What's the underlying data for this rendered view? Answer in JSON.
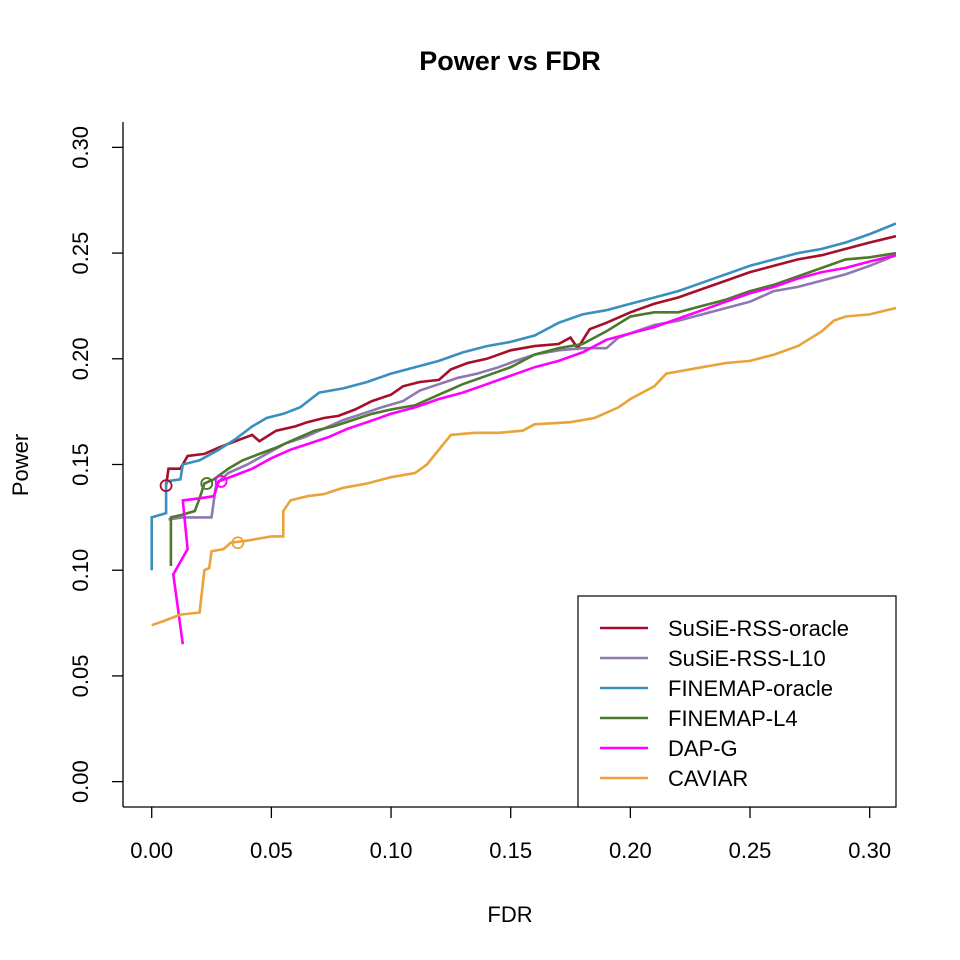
{
  "chart_data": {
    "type": "line",
    "title": "Power vs FDR",
    "xlabel": "FDR",
    "ylabel": "Power",
    "xlim": [
      -0.012,
      0.311
    ],
    "ylim": [
      -0.012,
      0.312
    ],
    "xticks": [
      0.0,
      0.05,
      0.1,
      0.15,
      0.2,
      0.25,
      0.3
    ],
    "xtick_labels": [
      "0.00",
      "0.05",
      "0.10",
      "0.15",
      "0.20",
      "0.25",
      "0.30"
    ],
    "yticks": [
      0.0,
      0.05,
      0.1,
      0.15,
      0.2,
      0.25,
      0.3
    ],
    "ytick_labels": [
      "0.00",
      "0.05",
      "0.10",
      "0.15",
      "0.20",
      "0.25",
      "0.30"
    ],
    "grid": false,
    "legend_position": "bottom-right",
    "series": [
      {
        "name": "SuSiE-RSS-oracle",
        "color": "#a50f2a",
        "points": [
          [
            0.006,
            0.14
          ],
          [
            0.007,
            0.148
          ],
          [
            0.012,
            0.148
          ],
          [
            0.015,
            0.154
          ],
          [
            0.022,
            0.155
          ],
          [
            0.028,
            0.158
          ],
          [
            0.035,
            0.161
          ],
          [
            0.042,
            0.164
          ],
          [
            0.045,
            0.161
          ],
          [
            0.052,
            0.166
          ],
          [
            0.06,
            0.168
          ],
          [
            0.065,
            0.17
          ],
          [
            0.072,
            0.172
          ],
          [
            0.078,
            0.173
          ],
          [
            0.085,
            0.176
          ],
          [
            0.092,
            0.18
          ],
          [
            0.1,
            0.183
          ],
          [
            0.105,
            0.187
          ],
          [
            0.112,
            0.189
          ],
          [
            0.12,
            0.19
          ],
          [
            0.125,
            0.195
          ],
          [
            0.132,
            0.198
          ],
          [
            0.14,
            0.2
          ],
          [
            0.15,
            0.204
          ],
          [
            0.16,
            0.206
          ],
          [
            0.17,
            0.207
          ],
          [
            0.175,
            0.21
          ],
          [
            0.178,
            0.205
          ],
          [
            0.183,
            0.214
          ],
          [
            0.19,
            0.217
          ],
          [
            0.2,
            0.222
          ],
          [
            0.21,
            0.226
          ],
          [
            0.22,
            0.229
          ],
          [
            0.23,
            0.233
          ],
          [
            0.24,
            0.237
          ],
          [
            0.25,
            0.241
          ],
          [
            0.26,
            0.244
          ],
          [
            0.27,
            0.247
          ],
          [
            0.28,
            0.249
          ],
          [
            0.29,
            0.252
          ],
          [
            0.3,
            0.255
          ],
          [
            0.311,
            0.258
          ]
        ],
        "marker": [
          0.006,
          0.14
        ]
      },
      {
        "name": "SuSiE-RSS-L10",
        "color": "#8e78b0",
        "points": [
          [
            0.007,
            0.124
          ],
          [
            0.013,
            0.125
          ],
          [
            0.025,
            0.125
          ],
          [
            0.027,
            0.141
          ],
          [
            0.032,
            0.146
          ],
          [
            0.04,
            0.15
          ],
          [
            0.048,
            0.155
          ],
          [
            0.056,
            0.16
          ],
          [
            0.064,
            0.163
          ],
          [
            0.072,
            0.167
          ],
          [
            0.08,
            0.171
          ],
          [
            0.088,
            0.174
          ],
          [
            0.096,
            0.177
          ],
          [
            0.105,
            0.18
          ],
          [
            0.112,
            0.185
          ],
          [
            0.12,
            0.188
          ],
          [
            0.128,
            0.191
          ],
          [
            0.136,
            0.193
          ],
          [
            0.145,
            0.196
          ],
          [
            0.152,
            0.199
          ],
          [
            0.16,
            0.202
          ],
          [
            0.17,
            0.204
          ],
          [
            0.18,
            0.205
          ],
          [
            0.19,
            0.205
          ],
          [
            0.195,
            0.21
          ],
          [
            0.2,
            0.212
          ],
          [
            0.21,
            0.216
          ],
          [
            0.22,
            0.218
          ],
          [
            0.23,
            0.221
          ],
          [
            0.24,
            0.224
          ],
          [
            0.25,
            0.227
          ],
          [
            0.26,
            0.232
          ],
          [
            0.27,
            0.234
          ],
          [
            0.28,
            0.237
          ],
          [
            0.29,
            0.24
          ],
          [
            0.3,
            0.244
          ],
          [
            0.311,
            0.249
          ]
        ],
        "marker": [
          0.023,
          0.141
        ]
      },
      {
        "name": "FINEMAP-oracle",
        "color": "#3a8fc1",
        "points": [
          [
            0.0,
            0.1
          ],
          [
            0.0,
            0.125
          ],
          [
            0.006,
            0.127
          ],
          [
            0.006,
            0.142
          ],
          [
            0.012,
            0.143
          ],
          [
            0.013,
            0.15
          ],
          [
            0.02,
            0.152
          ],
          [
            0.028,
            0.157
          ],
          [
            0.035,
            0.162
          ],
          [
            0.042,
            0.168
          ],
          [
            0.048,
            0.172
          ],
          [
            0.055,
            0.174
          ],
          [
            0.062,
            0.177
          ],
          [
            0.07,
            0.184
          ],
          [
            0.08,
            0.186
          ],
          [
            0.09,
            0.189
          ],
          [
            0.1,
            0.193
          ],
          [
            0.11,
            0.196
          ],
          [
            0.12,
            0.199
          ],
          [
            0.13,
            0.203
          ],
          [
            0.14,
            0.206
          ],
          [
            0.15,
            0.208
          ],
          [
            0.16,
            0.211
          ],
          [
            0.17,
            0.217
          ],
          [
            0.18,
            0.221
          ],
          [
            0.19,
            0.223
          ],
          [
            0.2,
            0.226
          ],
          [
            0.21,
            0.229
          ],
          [
            0.22,
            0.232
          ],
          [
            0.23,
            0.236
          ],
          [
            0.24,
            0.24
          ],
          [
            0.25,
            0.244
          ],
          [
            0.26,
            0.247
          ],
          [
            0.27,
            0.25
          ],
          [
            0.28,
            0.252
          ],
          [
            0.29,
            0.255
          ],
          [
            0.3,
            0.259
          ],
          [
            0.311,
            0.264
          ]
        ]
      },
      {
        "name": "FINEMAP-L4",
        "color": "#4a7a2a",
        "points": [
          [
            0.008,
            0.102
          ],
          [
            0.008,
            0.125
          ],
          [
            0.012,
            0.126
          ],
          [
            0.018,
            0.128
          ],
          [
            0.02,
            0.134
          ],
          [
            0.022,
            0.141
          ],
          [
            0.026,
            0.143
          ],
          [
            0.032,
            0.148
          ],
          [
            0.038,
            0.152
          ],
          [
            0.045,
            0.155
          ],
          [
            0.052,
            0.158
          ],
          [
            0.06,
            0.162
          ],
          [
            0.068,
            0.166
          ],
          [
            0.076,
            0.168
          ],
          [
            0.084,
            0.171
          ],
          [
            0.092,
            0.174
          ],
          [
            0.1,
            0.176
          ],
          [
            0.11,
            0.178
          ],
          [
            0.12,
            0.183
          ],
          [
            0.13,
            0.188
          ],
          [
            0.14,
            0.192
          ],
          [
            0.15,
            0.196
          ],
          [
            0.16,
            0.202
          ],
          [
            0.17,
            0.205
          ],
          [
            0.18,
            0.207
          ],
          [
            0.19,
            0.213
          ],
          [
            0.2,
            0.22
          ],
          [
            0.21,
            0.222
          ],
          [
            0.22,
            0.222
          ],
          [
            0.23,
            0.225
          ],
          [
            0.24,
            0.228
          ],
          [
            0.25,
            0.232
          ],
          [
            0.26,
            0.235
          ],
          [
            0.27,
            0.239
          ],
          [
            0.28,
            0.243
          ],
          [
            0.29,
            0.247
          ],
          [
            0.3,
            0.248
          ],
          [
            0.311,
            0.25
          ]
        ],
        "marker": [
          0.023,
          0.141
        ]
      },
      {
        "name": "DAP-G",
        "color": "#ff00ff",
        "points": [
          [
            0.013,
            0.065
          ],
          [
            0.009,
            0.098
          ],
          [
            0.015,
            0.11
          ],
          [
            0.013,
            0.133
          ],
          [
            0.02,
            0.134
          ],
          [
            0.026,
            0.135
          ],
          [
            0.028,
            0.142
          ],
          [
            0.035,
            0.145
          ],
          [
            0.042,
            0.148
          ],
          [
            0.05,
            0.153
          ],
          [
            0.058,
            0.157
          ],
          [
            0.066,
            0.16
          ],
          [
            0.074,
            0.163
          ],
          [
            0.082,
            0.167
          ],
          [
            0.09,
            0.17
          ],
          [
            0.1,
            0.174
          ],
          [
            0.11,
            0.177
          ],
          [
            0.12,
            0.181
          ],
          [
            0.13,
            0.184
          ],
          [
            0.14,
            0.188
          ],
          [
            0.15,
            0.192
          ],
          [
            0.16,
            0.196
          ],
          [
            0.17,
            0.199
          ],
          [
            0.18,
            0.203
          ],
          [
            0.19,
            0.209
          ],
          [
            0.2,
            0.212
          ],
          [
            0.21,
            0.215
          ],
          [
            0.22,
            0.219
          ],
          [
            0.23,
            0.223
          ],
          [
            0.24,
            0.227
          ],
          [
            0.25,
            0.231
          ],
          [
            0.26,
            0.234
          ],
          [
            0.27,
            0.238
          ],
          [
            0.28,
            0.241
          ],
          [
            0.29,
            0.243
          ],
          [
            0.3,
            0.246
          ],
          [
            0.311,
            0.249
          ]
        ],
        "marker": [
          0.029,
          0.142
        ]
      },
      {
        "name": "CAVIAR",
        "color": "#e8a33a",
        "points": [
          [
            0.0,
            0.074
          ],
          [
            0.005,
            0.076
          ],
          [
            0.012,
            0.079
          ],
          [
            0.02,
            0.08
          ],
          [
            0.022,
            0.1
          ],
          [
            0.024,
            0.101
          ],
          [
            0.025,
            0.109
          ],
          [
            0.03,
            0.11
          ],
          [
            0.033,
            0.113
          ],
          [
            0.04,
            0.114
          ],
          [
            0.045,
            0.115
          ],
          [
            0.05,
            0.116
          ],
          [
            0.055,
            0.116
          ],
          [
            0.055,
            0.128
          ],
          [
            0.058,
            0.133
          ],
          [
            0.065,
            0.135
          ],
          [
            0.072,
            0.136
          ],
          [
            0.08,
            0.139
          ],
          [
            0.09,
            0.141
          ],
          [
            0.1,
            0.144
          ],
          [
            0.11,
            0.146
          ],
          [
            0.115,
            0.15
          ],
          [
            0.12,
            0.157
          ],
          [
            0.125,
            0.164
          ],
          [
            0.135,
            0.165
          ],
          [
            0.145,
            0.165
          ],
          [
            0.155,
            0.166
          ],
          [
            0.16,
            0.169
          ],
          [
            0.175,
            0.17
          ],
          [
            0.185,
            0.172
          ],
          [
            0.195,
            0.177
          ],
          [
            0.2,
            0.181
          ],
          [
            0.205,
            0.184
          ],
          [
            0.21,
            0.187
          ],
          [
            0.215,
            0.193
          ],
          [
            0.22,
            0.194
          ],
          [
            0.23,
            0.196
          ],
          [
            0.24,
            0.198
          ],
          [
            0.25,
            0.199
          ],
          [
            0.26,
            0.202
          ],
          [
            0.27,
            0.206
          ],
          [
            0.28,
            0.213
          ],
          [
            0.285,
            0.218
          ],
          [
            0.29,
            0.22
          ],
          [
            0.3,
            0.221
          ],
          [
            0.311,
            0.224
          ]
        ],
        "marker": [
          0.036,
          0.113
        ]
      }
    ]
  }
}
